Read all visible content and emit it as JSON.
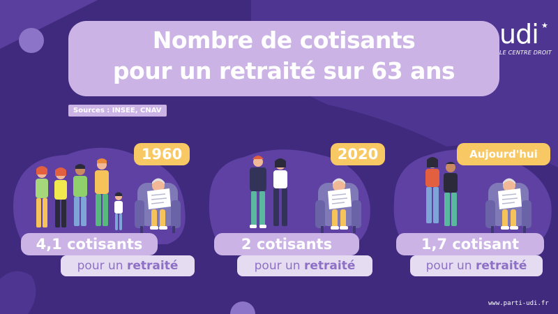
{
  "title": {
    "line1": "Nombre de cotisants",
    "line2": "pour un retraité sur 63 ans"
  },
  "logo": {
    "name": "udi",
    "tagline": "LE CENTRE DROIT"
  },
  "sources": "Sources : INSEE, CNAV",
  "panels": [
    {
      "year": "1960",
      "count": "4,1 cotisants",
      "per_prefix": "pour un",
      "per_emph": "retraité"
    },
    {
      "year": "2020",
      "count": "2 cotisants",
      "per_prefix": "pour un",
      "per_emph": "retraité"
    },
    {
      "year": "Aujourd'hui",
      "count": "1,7 cotisant",
      "per_prefix": "pour un",
      "per_emph": "retraité"
    }
  ],
  "footer_url": "www.parti-udi.fr",
  "colors": {
    "background": "#3f2a7e",
    "blob": "#5a3f9e",
    "title_box": "#cbb3e6",
    "year_badge": "#f7c864",
    "per_label_bg": "#e6dcf2",
    "per_label_text": "#8d70c5"
  }
}
